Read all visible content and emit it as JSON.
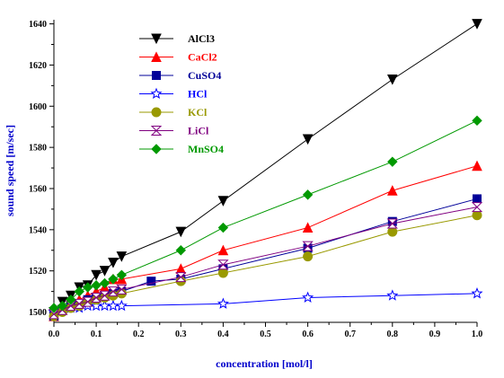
{
  "chart_data": {
    "type": "line",
    "title": "",
    "xlabel": "concentration [mol/l]",
    "ylabel": "sound speed [m/sec]",
    "xlim": [
      0,
      1.0
    ],
    "ylim": [
      1495,
      1642
    ],
    "x_ticks": [
      0.0,
      0.1,
      0.2,
      0.3,
      0.4,
      0.5,
      0.6,
      0.7,
      0.8,
      0.9,
      1.0
    ],
    "x_tick_labels": [
      "0.0",
      "0.1",
      "0.2",
      "0.3",
      "0.4",
      "0.5",
      "0.6",
      "0.7",
      "0.8",
      "0.9",
      "1.0"
    ],
    "y_ticks": [
      1500,
      1520,
      1540,
      1560,
      1580,
      1600,
      1620,
      1640
    ],
    "y_tick_labels": [
      "1500",
      "1520",
      "1540",
      "1560",
      "1580",
      "1600",
      "1620",
      "1640"
    ],
    "grid": false,
    "legend_position": "top-left",
    "series": [
      {
        "name": "AlCl3",
        "color": "#000000",
        "marker": "triangle-down",
        "filled": true,
        "x": [
          0.0,
          0.02,
          0.04,
          0.06,
          0.08,
          0.1,
          0.12,
          0.14,
          0.16,
          0.3,
          0.4,
          0.6,
          0.8,
          1.0
        ],
        "y": [
          1500,
          1505,
          1508,
          1512,
          1513,
          1518,
          1520,
          1524,
          1527,
          1539,
          1554,
          1584,
          1613,
          1640
        ]
      },
      {
        "name": "CaCl2",
        "color": "#ff0000",
        "marker": "triangle-up",
        "filled": true,
        "x": [
          0.0,
          0.02,
          0.04,
          0.06,
          0.08,
          0.1,
          0.12,
          0.14,
          0.16,
          0.3,
          0.4,
          0.6,
          0.8,
          1.0
        ],
        "y": [
          1498,
          1502,
          1504,
          1506,
          1508,
          1510,
          1512,
          1516,
          1516,
          1521,
          1530,
          1541,
          1559,
          1571
        ]
      },
      {
        "name": "CuSO4",
        "color": "#000099",
        "marker": "square",
        "filled": true,
        "x": [
          0.0,
          0.02,
          0.04,
          0.06,
          0.08,
          0.1,
          0.12,
          0.14,
          0.16,
          0.23,
          0.3,
          0.4,
          0.6,
          0.8,
          1.0
        ],
        "y": [
          1498,
          1501,
          1503,
          1504,
          1506,
          1507,
          1508,
          1509,
          1510,
          1515,
          1516,
          1521,
          1531,
          1544,
          1555
        ]
      },
      {
        "name": "HCl",
        "color": "#0000ff",
        "marker": "star",
        "filled": false,
        "x": [
          0.0,
          0.02,
          0.04,
          0.06,
          0.08,
          0.1,
          0.12,
          0.14,
          0.16,
          0.4,
          0.6,
          0.8,
          1.0
        ],
        "y": [
          1500,
          1501,
          1502,
          1502,
          1503,
          1503,
          1503,
          1503,
          1503,
          1504,
          1507,
          1508,
          1509
        ]
      },
      {
        "name": "KCl",
        "color": "#999900",
        "marker": "circle",
        "filled": true,
        "x": [
          0.0,
          0.02,
          0.04,
          0.06,
          0.08,
          0.1,
          0.12,
          0.14,
          0.16,
          0.3,
          0.4,
          0.6,
          0.8,
          1.0
        ],
        "y": [
          1498,
          1500,
          1502,
          1503,
          1505,
          1506,
          1507,
          1508,
          1509,
          1515,
          1519,
          1527,
          1539,
          1547
        ]
      },
      {
        "name": "LiCl",
        "color": "#800080",
        "marker": "hourglass",
        "filled": false,
        "x": [
          0.0,
          0.02,
          0.04,
          0.06,
          0.08,
          0.1,
          0.12,
          0.14,
          0.16,
          0.3,
          0.4,
          0.6,
          0.8,
          1.0
        ],
        "y": [
          1499,
          1501,
          1503,
          1504,
          1505,
          1507,
          1508,
          1510,
          1511,
          1517,
          1523,
          1532,
          1543,
          1551
        ]
      },
      {
        "name": "MnSO4",
        "color": "#009900",
        "marker": "diamond",
        "filled": true,
        "x": [
          0.0,
          0.02,
          0.04,
          0.06,
          0.08,
          0.1,
          0.12,
          0.14,
          0.16,
          0.3,
          0.4,
          0.6,
          0.8,
          1.0
        ],
        "y": [
          1502,
          1503,
          1506,
          1510,
          1512,
          1513,
          1514,
          1516,
          1518,
          1530,
          1541,
          1557,
          1573,
          1593
        ]
      }
    ]
  }
}
